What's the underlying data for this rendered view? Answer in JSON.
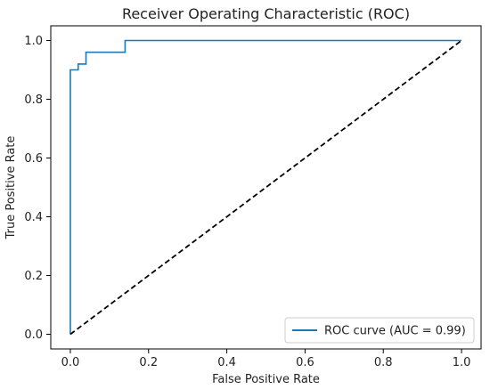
{
  "chart_data": {
    "type": "line",
    "title": "Receiver Operating Characteristic (ROC)",
    "xlabel": "False Positive Rate",
    "ylabel": "True Positive Rate",
    "xlim": [
      -0.05,
      1.05
    ],
    "ylim": [
      -0.05,
      1.05
    ],
    "x_ticks": [
      0.0,
      0.2,
      0.4,
      0.6,
      0.8,
      1.0
    ],
    "x_tick_labels": [
      "0.0",
      "0.2",
      "0.4",
      "0.6",
      "0.8",
      "1.0"
    ],
    "y_ticks": [
      0.0,
      0.2,
      0.4,
      0.6,
      0.8,
      1.0
    ],
    "y_tick_labels": [
      "0.0",
      "0.2",
      "0.4",
      "0.6",
      "0.8",
      "1.0"
    ],
    "grid": false,
    "legend_position": "lower-right",
    "series": [
      {
        "name": "ROC curve (AUC = 0.99)",
        "color": "#1f77b4",
        "style": "solid",
        "x": [
          0.0,
          0.0,
          0.0,
          0.02,
          0.02,
          0.04,
          0.04,
          0.14,
          0.14,
          1.0
        ],
        "y": [
          0.0,
          0.9,
          0.9,
          0.9,
          0.92,
          0.92,
          0.96,
          0.96,
          1.0,
          1.0
        ]
      },
      {
        "name": "",
        "color": "#000000",
        "style": "dashed",
        "x": [
          0.0,
          1.0
        ],
        "y": [
          0.0,
          1.0
        ]
      }
    ]
  }
}
